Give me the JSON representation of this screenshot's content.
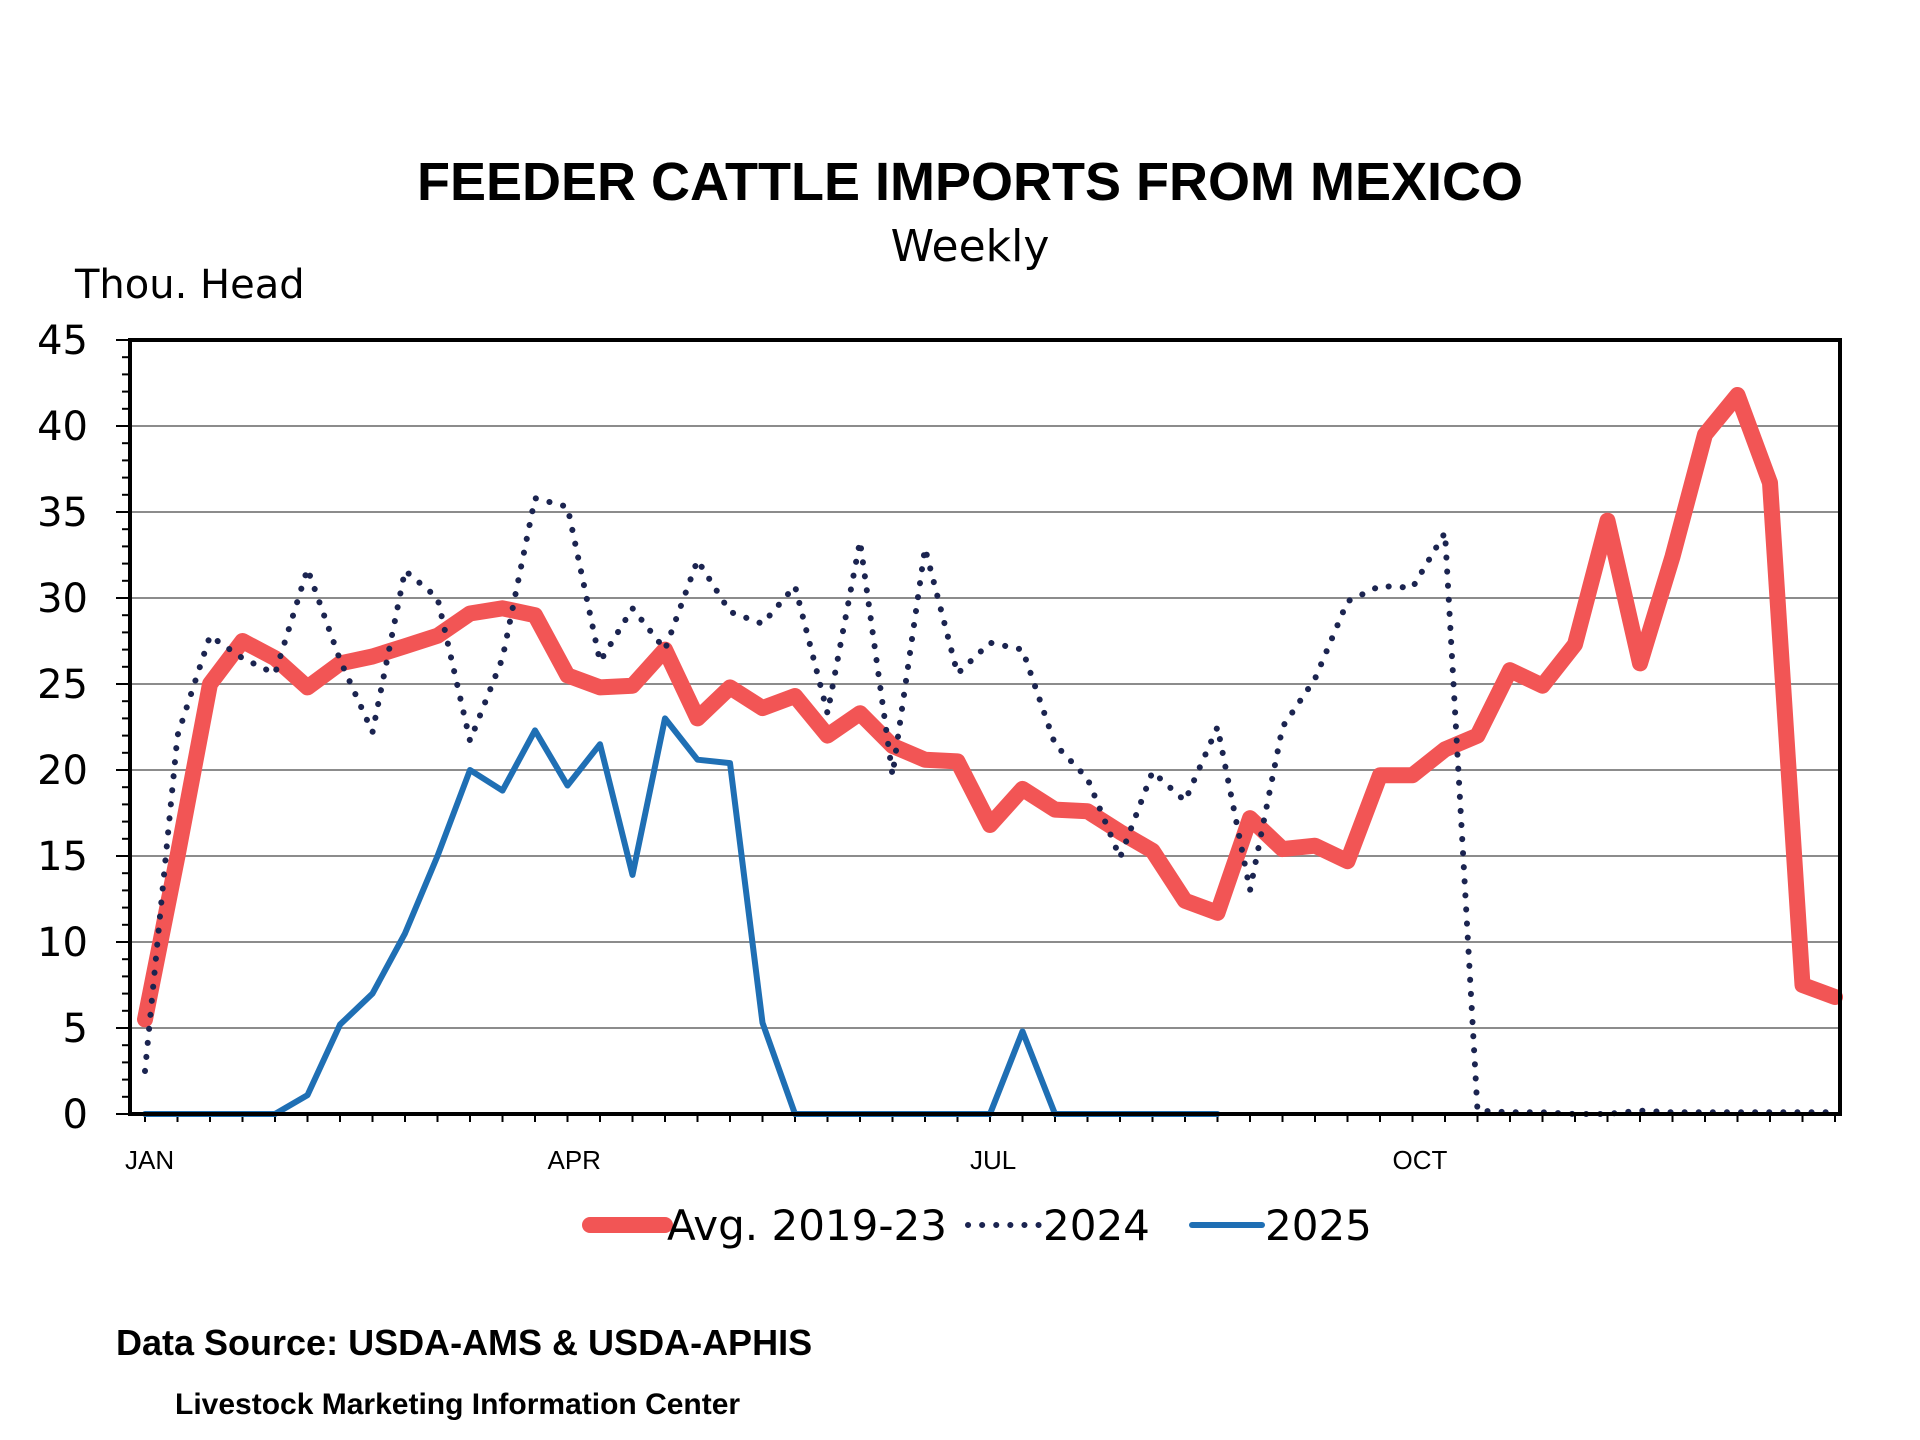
{
  "chart_data": {
    "type": "line",
    "title": "FEEDER CATTLE IMPORTS FROM MEXICO",
    "subtitle": "Weekly",
    "ylabel": "Thou. Head",
    "ylim": [
      0,
      45
    ],
    "yticks": [
      0,
      5,
      10,
      15,
      20,
      25,
      30,
      35,
      40,
      45
    ],
    "xlim": [
      1,
      53
    ],
    "x_axis_labels": [
      {
        "label": "JAN",
        "week": 1
      },
      {
        "label": "APR",
        "week": 14
      },
      {
        "label": "JUL",
        "week": 27
      },
      {
        "label": "OCT",
        "week": 40
      }
    ],
    "grid": "horizontal",
    "legend_position": "bottom",
    "series": [
      {
        "name": "Avg. 2019-23",
        "color": "#f25555",
        "style": "solid-thick",
        "x": [
          1,
          2,
          3,
          4,
          5,
          6,
          7,
          8,
          9,
          10,
          11,
          12,
          13,
          14,
          15,
          16,
          17,
          18,
          19,
          20,
          21,
          22,
          23,
          24,
          25,
          26,
          27,
          28,
          29,
          30,
          31,
          32,
          33,
          34,
          35,
          36,
          37,
          38,
          39,
          40,
          41,
          42,
          43,
          44,
          45,
          46,
          47,
          48,
          49,
          50,
          51,
          52,
          53
        ],
        "values": [
          5.5,
          15,
          25,
          27.5,
          26.5,
          24.8,
          26.2,
          26.6,
          27.2,
          27.8,
          29.1,
          29.4,
          29,
          25.5,
          24.8,
          24.9,
          27,
          23,
          24.8,
          23.6,
          24.3,
          22,
          23.3,
          21.4,
          20.6,
          20.5,
          16.8,
          18.9,
          17.7,
          17.6,
          16.4,
          15.3,
          12.4,
          11.7,
          17.2,
          15.4,
          15.6,
          14.7,
          19.7,
          19.7,
          21.2,
          22,
          25.8,
          24.9,
          27.3,
          34.5,
          26.2,
          32.4,
          39.5,
          41.8,
          36.7,
          7.5,
          6.8
        ]
      },
      {
        "name": "2024",
        "color": "#1b2450",
        "style": "dotted",
        "x": [
          1,
          2,
          3,
          4,
          5,
          6,
          7,
          8,
          9,
          10,
          11,
          12,
          13,
          14,
          15,
          16,
          17,
          18,
          19,
          20,
          21,
          22,
          23,
          24,
          25,
          26,
          27,
          28,
          29,
          30,
          31,
          32,
          33,
          34,
          35,
          36,
          37,
          38,
          39,
          40,
          41,
          42,
          43,
          44,
          45,
          46,
          47,
          48,
          49,
          50,
          51,
          52,
          53
        ],
        "values": [
          2.5,
          22,
          27.8,
          26.5,
          25.6,
          31.7,
          26.4,
          22.2,
          31.6,
          30,
          21.7,
          26.5,
          35.8,
          35.3,
          26.3,
          29.4,
          27,
          32.2,
          29.2,
          28.5,
          30.7,
          23.3,
          33.3,
          19.7,
          32.9,
          25.6,
          27.4,
          27,
          21.5,
          19.5,
          14.9,
          19.9,
          18.2,
          22.5,
          13,
          22.5,
          25.3,
          29.8,
          30.7,
          30.6,
          33.8,
          0.2,
          0.1,
          0.1,
          0,
          0,
          0.2,
          0.1,
          0.1,
          0.1,
          0.1,
          0.1,
          0.1
        ]
      },
      {
        "name": "2025",
        "color": "#1f6fb4",
        "style": "solid",
        "x": [
          1,
          2,
          3,
          4,
          5,
          6,
          7,
          8,
          9,
          10,
          11,
          12,
          13,
          14,
          15,
          16,
          17,
          18,
          19,
          20,
          21,
          22,
          23,
          24,
          25,
          26,
          27,
          28,
          29,
          30,
          31,
          32,
          33,
          34
        ],
        "values": [
          0,
          0,
          0,
          0,
          0,
          1.1,
          5.2,
          7,
          10.5,
          15,
          20,
          18.8,
          22.3,
          19.1,
          21.5,
          13.9,
          23,
          20.6,
          20.4,
          5.3,
          0,
          0,
          0,
          0,
          0,
          0,
          0,
          4.8,
          0,
          0,
          0,
          0,
          0,
          0
        ]
      }
    ]
  },
  "footer": {
    "source": "Data Source:  USDA-AMS & USDA-APHIS",
    "credit": "Livestock Marketing Information Center"
  }
}
